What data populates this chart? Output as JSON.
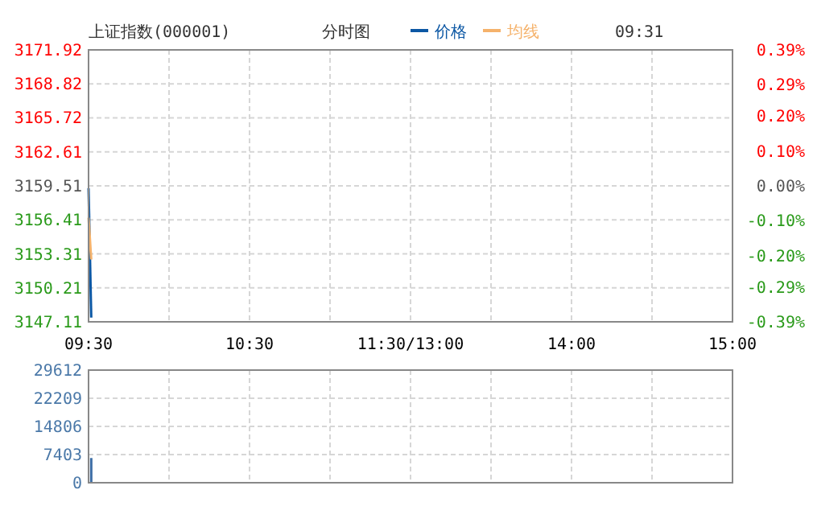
{
  "chart_data": [
    {
      "type": "line",
      "title": "上证指数(000001)",
      "subtitle": "分时图",
      "annotations": [
        "09:31"
      ],
      "legend": "top",
      "grid": true,
      "categories": [
        "09:30",
        null,
        null,
        null,
        null,
        null,
        null,
        null,
        null,
        null,
        null,
        null,
        null,
        null,
        null,
        null,
        null,
        null,
        null,
        null,
        null,
        null,
        null,
        null,
        null,
        null,
        null,
        null,
        null,
        null,
        null,
        null,
        null,
        null,
        null,
        null,
        null,
        null,
        null,
        null,
        null,
        null,
        null,
        null,
        null,
        null,
        null,
        null,
        null,
        null,
        null,
        null,
        null,
        null,
        null,
        null,
        null,
        null,
        null,
        null,
        "10:30",
        null,
        null,
        null,
        null,
        null,
        null,
        null,
        null,
        null,
        null,
        null,
        null,
        null,
        null,
        null,
        null,
        null,
        null,
        null,
        null,
        null,
        null,
        null,
        null,
        null,
        null,
        null,
        null,
        null,
        null,
        null,
        null,
        null,
        null,
        null,
        null,
        null,
        null,
        null,
        null,
        null,
        null,
        null,
        null,
        null,
        null,
        null,
        null,
        null,
        null,
        null,
        null,
        null,
        null,
        null,
        null,
        null,
        null,
        null,
        "11:30/13:00",
        null,
        null,
        null,
        null,
        null,
        null,
        null,
        null,
        null,
        null,
        null,
        null,
        null,
        null,
        null,
        null,
        null,
        null,
        null,
        null,
        null,
        null,
        null,
        null,
        null,
        null,
        null,
        null,
        null,
        null,
        null,
        null,
        null,
        null,
        null,
        null,
        null,
        null,
        null,
        null,
        null,
        null,
        null,
        null,
        null,
        null,
        null,
        null,
        null,
        null,
        null,
        null,
        null,
        null,
        null,
        null,
        null,
        null,
        null,
        "14:00",
        null,
        null,
        null,
        null,
        null,
        null,
        null,
        null,
        null,
        null,
        null,
        null,
        null,
        null,
        null,
        null,
        null,
        null,
        null,
        null,
        null,
        null,
        null,
        null,
        null,
        null,
        null,
        null,
        null,
        null,
        null,
        null,
        null,
        null,
        null,
        null,
        null,
        null,
        null,
        null,
        null,
        null,
        null,
        null,
        null,
        null,
        null,
        null,
        null,
        null,
        null,
        null,
        null,
        null,
        null,
        null,
        null,
        null,
        null,
        "15:00"
      ],
      "ylim": [
        3147.11,
        3171.92
      ],
      "yticks": [
        3147.11,
        3150.21,
        3153.31,
        3156.41,
        3159.51,
        3162.61,
        3165.72,
        3168.82,
        3171.92
      ],
      "y2lim": [
        -0.39,
        0.39
      ],
      "y2ticks": [
        {
          "value": -0.39,
          "label": "-0.39%"
        },
        {
          "value": -0.29,
          "label": "-0.29%"
        },
        {
          "value": -0.2,
          "label": "-0.20%"
        },
        {
          "value": -0.1,
          "label": "-0.10%"
        },
        {
          "value": 0,
          "label": "0.00%"
        },
        {
          "value": 0.1,
          "label": "0.10%"
        },
        {
          "value": 0.2,
          "label": "0.20%"
        },
        {
          "value": 0.29,
          "label": "0.29%"
        },
        {
          "value": 0.39,
          "label": "0.39%"
        }
      ],
      "series": [
        {
          "name": "价格",
          "color": "#0b57a4",
          "values": [
            3159.3,
            3147.5,
            null,
            null,
            null,
            null,
            null,
            null,
            null,
            null,
            null,
            null,
            null,
            null,
            null,
            null,
            null,
            null,
            null,
            null,
            null,
            null,
            null,
            null,
            null,
            null,
            null,
            null,
            null,
            null,
            null,
            null,
            null,
            null,
            null,
            null,
            null,
            null,
            null,
            null,
            null,
            null,
            null,
            null,
            null,
            null,
            null,
            null,
            null,
            null,
            null,
            null,
            null,
            null,
            null,
            null,
            null,
            null,
            null,
            null,
            null,
            null,
            null,
            null,
            null,
            null,
            null,
            null,
            null,
            null,
            null,
            null,
            null,
            null,
            null,
            null,
            null,
            null,
            null,
            null,
            null,
            null,
            null,
            null,
            null,
            null,
            null,
            null,
            null,
            null,
            null,
            null,
            null,
            null,
            null,
            null,
            null,
            null,
            null,
            null,
            null,
            null,
            null,
            null,
            null,
            null,
            null,
            null,
            null,
            null,
            null,
            null,
            null,
            null,
            null,
            null,
            null,
            null,
            null,
            null,
            null,
            null,
            null,
            null,
            null,
            null,
            null,
            null,
            null,
            null,
            null,
            null,
            null,
            null,
            null,
            null,
            null,
            null,
            null,
            null,
            null,
            null,
            null,
            null,
            null,
            null,
            null,
            null,
            null,
            null,
            null,
            null,
            null,
            null,
            null,
            null,
            null,
            null,
            null,
            null,
            null,
            null,
            null,
            null,
            null,
            null,
            null,
            null,
            null,
            null,
            null,
            null,
            null,
            null,
            null,
            null,
            null,
            null,
            null,
            null,
            null,
            null,
            null,
            null,
            null,
            null,
            null,
            null,
            null,
            null,
            null,
            null,
            null,
            null,
            null,
            null,
            null,
            null,
            null,
            null,
            null,
            null,
            null,
            null,
            null,
            null,
            null,
            null,
            null,
            null,
            null,
            null,
            null,
            null,
            null,
            null,
            null,
            null,
            null,
            null,
            null,
            null,
            null,
            null,
            null,
            null,
            null,
            null,
            null,
            null,
            null,
            null,
            null,
            null,
            null,
            null,
            null,
            null,
            null,
            null,
            null
          ]
        },
        {
          "name": "均线",
          "color": "#f5b26b",
          "values": [
            3156.6,
            3152.8,
            null,
            null,
            null,
            null,
            null,
            null,
            null,
            null,
            null,
            null,
            null,
            null,
            null,
            null,
            null,
            null,
            null,
            null,
            null,
            null,
            null,
            null,
            null,
            null,
            null,
            null,
            null,
            null,
            null,
            null,
            null,
            null,
            null,
            null,
            null,
            null,
            null,
            null,
            null,
            null,
            null,
            null,
            null,
            null,
            null,
            null,
            null,
            null,
            null,
            null,
            null,
            null,
            null,
            null,
            null,
            null,
            null,
            null,
            null,
            null,
            null,
            null,
            null,
            null,
            null,
            null,
            null,
            null,
            null,
            null,
            null,
            null,
            null,
            null,
            null,
            null,
            null,
            null,
            null,
            null,
            null,
            null,
            null,
            null,
            null,
            null,
            null,
            null,
            null,
            null,
            null,
            null,
            null,
            null,
            null,
            null,
            null,
            null,
            null,
            null,
            null,
            null,
            null,
            null,
            null,
            null,
            null,
            null,
            null,
            null,
            null,
            null,
            null,
            null,
            null,
            null,
            null,
            null,
            null,
            null,
            null,
            null,
            null,
            null,
            null,
            null,
            null,
            null,
            null,
            null,
            null,
            null,
            null,
            null,
            null,
            null,
            null,
            null,
            null,
            null,
            null,
            null,
            null,
            null,
            null,
            null,
            null,
            null,
            null,
            null,
            null,
            null,
            null,
            null,
            null,
            null,
            null,
            null,
            null,
            null,
            null,
            null,
            null,
            null,
            null,
            null,
            null,
            null,
            null,
            null,
            null,
            null,
            null,
            null,
            null,
            null,
            null,
            null,
            null,
            null,
            null,
            null,
            null,
            null,
            null,
            null,
            null,
            null,
            null,
            null,
            null,
            null,
            null,
            null,
            null,
            null,
            null,
            null,
            null,
            null,
            null,
            null,
            null,
            null,
            null,
            null,
            null,
            null,
            null,
            null,
            null,
            null,
            null,
            null,
            null,
            null,
            null,
            null,
            null,
            null,
            null,
            null,
            null,
            null,
            null,
            null,
            null,
            null,
            null,
            null,
            null,
            null,
            null,
            null,
            null,
            null,
            null,
            null,
            null
          ]
        }
      ]
    },
    {
      "type": "bar",
      "grid": true,
      "categories": [
        null,
        null,
        null,
        null,
        null,
        null,
        null,
        null,
        null,
        null,
        null,
        null,
        null,
        null,
        null,
        null,
        null,
        null,
        null,
        null,
        null,
        null,
        null,
        null,
        null,
        null,
        null,
        null,
        null,
        null,
        null,
        null,
        null,
        null,
        null,
        null,
        null,
        null,
        null,
        null,
        null,
        null,
        null,
        null,
        null,
        null,
        null,
        null,
        null,
        null,
        null,
        null,
        null,
        null,
        null,
        null,
        null,
        null,
        null,
        null,
        null,
        null,
        null,
        null,
        null,
        null,
        null,
        null,
        null,
        null,
        null,
        null,
        null,
        null,
        null,
        null,
        null,
        null,
        null,
        null,
        null,
        null,
        null,
        null,
        null,
        null,
        null,
        null,
        null,
        null,
        null,
        null,
        null,
        null,
        null,
        null,
        null,
        null,
        null,
        null,
        null,
        null,
        null,
        null,
        null,
        null,
        null,
        null,
        null,
        null,
        null,
        null,
        null,
        null,
        null,
        null,
        null,
        null,
        null,
        null,
        null,
        null,
        null,
        null,
        null,
        null,
        null,
        null,
        null,
        null,
        null,
        null,
        null,
        null,
        null,
        null,
        null,
        null,
        null,
        null,
        null,
        null,
        null,
        null,
        null,
        null,
        null,
        null,
        null,
        null,
        null,
        null,
        null,
        null,
        null,
        null,
        null,
        null,
        null,
        null,
        null,
        null,
        null,
        null,
        null,
        null,
        null,
        null,
        null,
        null,
        null,
        null,
        null,
        null,
        null,
        null,
        null,
        null,
        null,
        null,
        null,
        null,
        null,
        null,
        null,
        null,
        null,
        null,
        null,
        null,
        null,
        null,
        null,
        null,
        null,
        null,
        null,
        null,
        null,
        null,
        null,
        null,
        null,
        null,
        null,
        null,
        null,
        null,
        null,
        null,
        null,
        null,
        null,
        null,
        null,
        null,
        null,
        null,
        null,
        null,
        null,
        null,
        null,
        null,
        null,
        null,
        null,
        null,
        null,
        null,
        null,
        null,
        null,
        null,
        null,
        null,
        null,
        null,
        null,
        null,
        null
      ],
      "ylim": [
        0,
        29612
      ],
      "yticks": [
        0,
        7403,
        14806,
        22209,
        29612
      ],
      "values": [
        null,
        6500,
        null,
        null,
        null,
        null,
        null,
        null,
        null,
        null,
        null,
        null,
        null,
        null,
        null,
        null,
        null,
        null,
        null,
        null,
        null,
        null,
        null,
        null,
        null,
        null,
        null,
        null,
        null,
        null,
        null,
        null,
        null,
        null,
        null,
        null,
        null,
        null,
        null,
        null,
        null,
        null,
        null,
        null,
        null,
        null,
        null,
        null,
        null,
        null,
        null,
        null,
        null,
        null,
        null,
        null,
        null,
        null,
        null,
        null,
        null,
        null,
        null,
        null,
        null,
        null,
        null,
        null,
        null,
        null,
        null,
        null,
        null,
        null,
        null,
        null,
        null,
        null,
        null,
        null,
        null,
        null,
        null,
        null,
        null,
        null,
        null,
        null,
        null,
        null,
        null,
        null,
        null,
        null,
        null,
        null,
        null,
        null,
        null,
        null,
        null,
        null,
        null,
        null,
        null,
        null,
        null,
        null,
        null,
        null,
        null,
        null,
        null,
        null,
        null,
        null,
        null,
        null,
        null,
        null,
        null,
        null,
        null,
        null,
        null,
        null,
        null,
        null,
        null,
        null,
        null,
        null,
        null,
        null,
        null,
        null,
        null,
        null,
        null,
        null,
        null,
        null,
        null,
        null,
        null,
        null,
        null,
        null,
        null,
        null,
        null,
        null,
        null,
        null,
        null,
        null,
        null,
        null,
        null,
        null,
        null,
        null,
        null,
        null,
        null,
        null,
        null,
        null,
        null,
        null,
        null,
        null,
        null,
        null,
        null,
        null,
        null,
        null,
        null,
        null,
        null,
        null,
        null,
        null,
        null,
        null,
        null,
        null,
        null,
        null,
        null,
        null,
        null,
        null,
        null,
        null,
        null,
        null,
        null,
        null,
        null,
        null,
        null,
        null,
        null,
        null,
        null,
        null,
        null,
        null,
        null,
        null,
        null,
        null,
        null,
        null,
        null,
        null,
        null,
        null,
        null,
        null,
        null,
        null,
        null,
        null,
        null,
        null,
        null,
        null,
        null,
        null,
        null,
        null,
        null,
        null,
        null,
        null,
        null,
        null,
        null
      ],
      "color": "#3d6ea5"
    }
  ]
}
